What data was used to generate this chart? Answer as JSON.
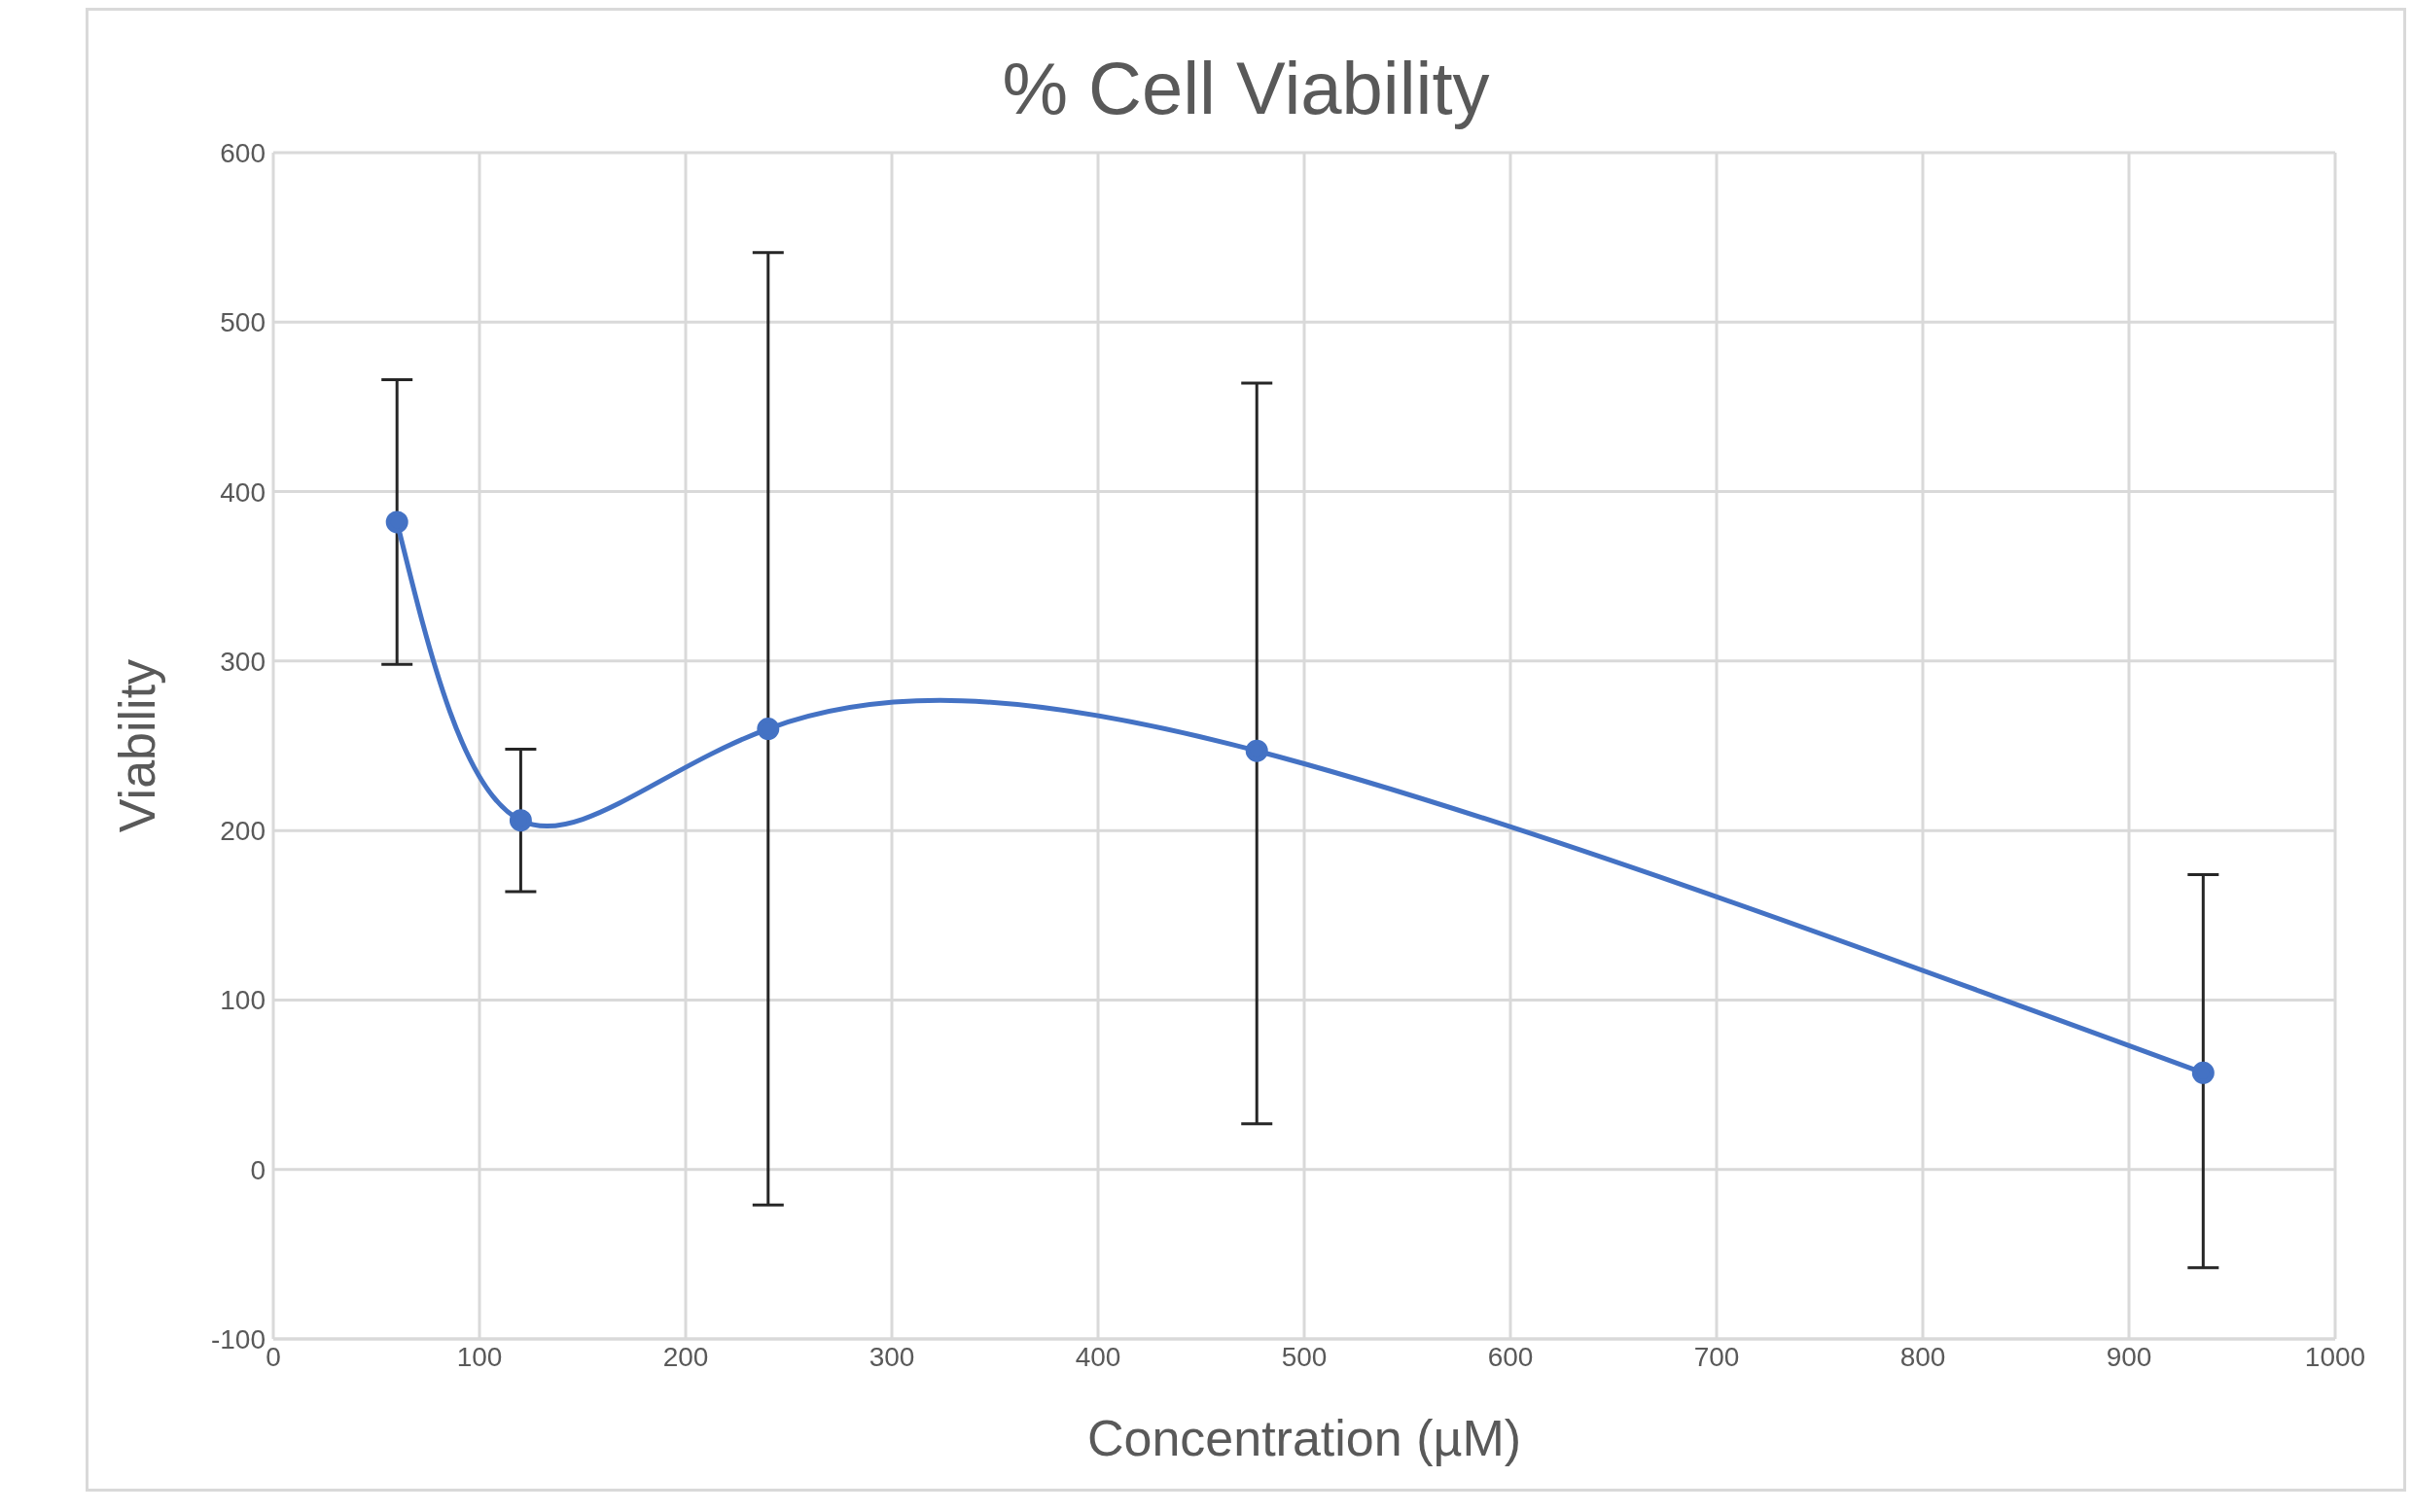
{
  "chart_data": {
    "type": "line",
    "title": "% Cell Viability",
    "xlabel": "Concentration (µM)",
    "ylabel": "Viability",
    "x": [
      60,
      120,
      240,
      477,
      936
    ],
    "series": [
      {
        "color": "#4472c4",
        "values": [
          382,
          206,
          260,
          247,
          57
        ],
        "errors": [
          [
            298,
            466
          ],
          [
            164,
            248
          ],
          [
            -21,
            541
          ],
          [
            27,
            464
          ],
          [
            -58,
            174
          ]
        ]
      }
    ],
    "xlim": [
      0,
      1000
    ],
    "xticks": [
      0,
      100,
      200,
      300,
      400,
      500,
      600,
      700,
      800,
      900,
      1000
    ],
    "ylim": [
      -100,
      600
    ],
    "yticks": [
      -100,
      0,
      100,
      200,
      300,
      400,
      500,
      600
    ],
    "grid": true,
    "marker": "circle",
    "line_style": "solid",
    "legend": false
  }
}
